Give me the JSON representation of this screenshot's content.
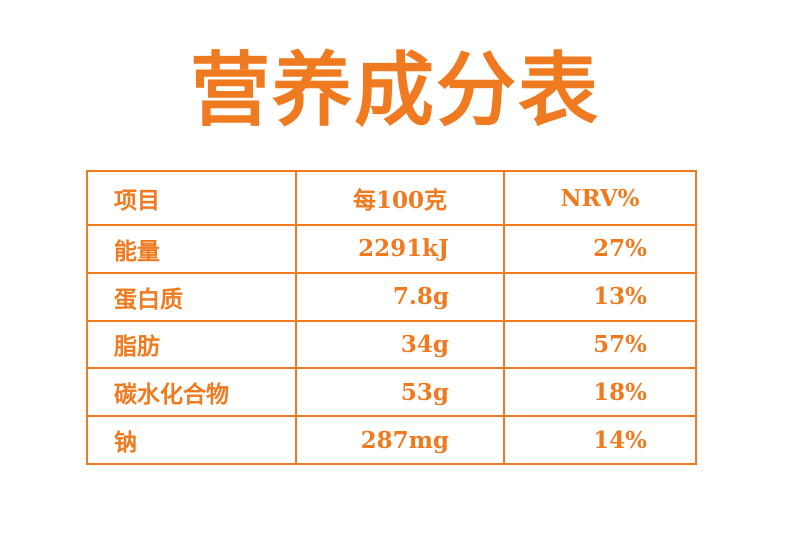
{
  "header": {
    "title": "营养成分表"
  },
  "table": {
    "columns": [
      "项目",
      "每100克",
      "NRV%"
    ],
    "rows": [
      [
        "能量",
        "2291kJ",
        "27%"
      ],
      [
        "蛋白质",
        "7.8g",
        "13%"
      ],
      [
        "脂肪",
        "34g",
        "57%"
      ],
      [
        "碳水化合物",
        "53g",
        "18%"
      ],
      [
        "钠",
        "287mg",
        "14%"
      ]
    ]
  }
}
